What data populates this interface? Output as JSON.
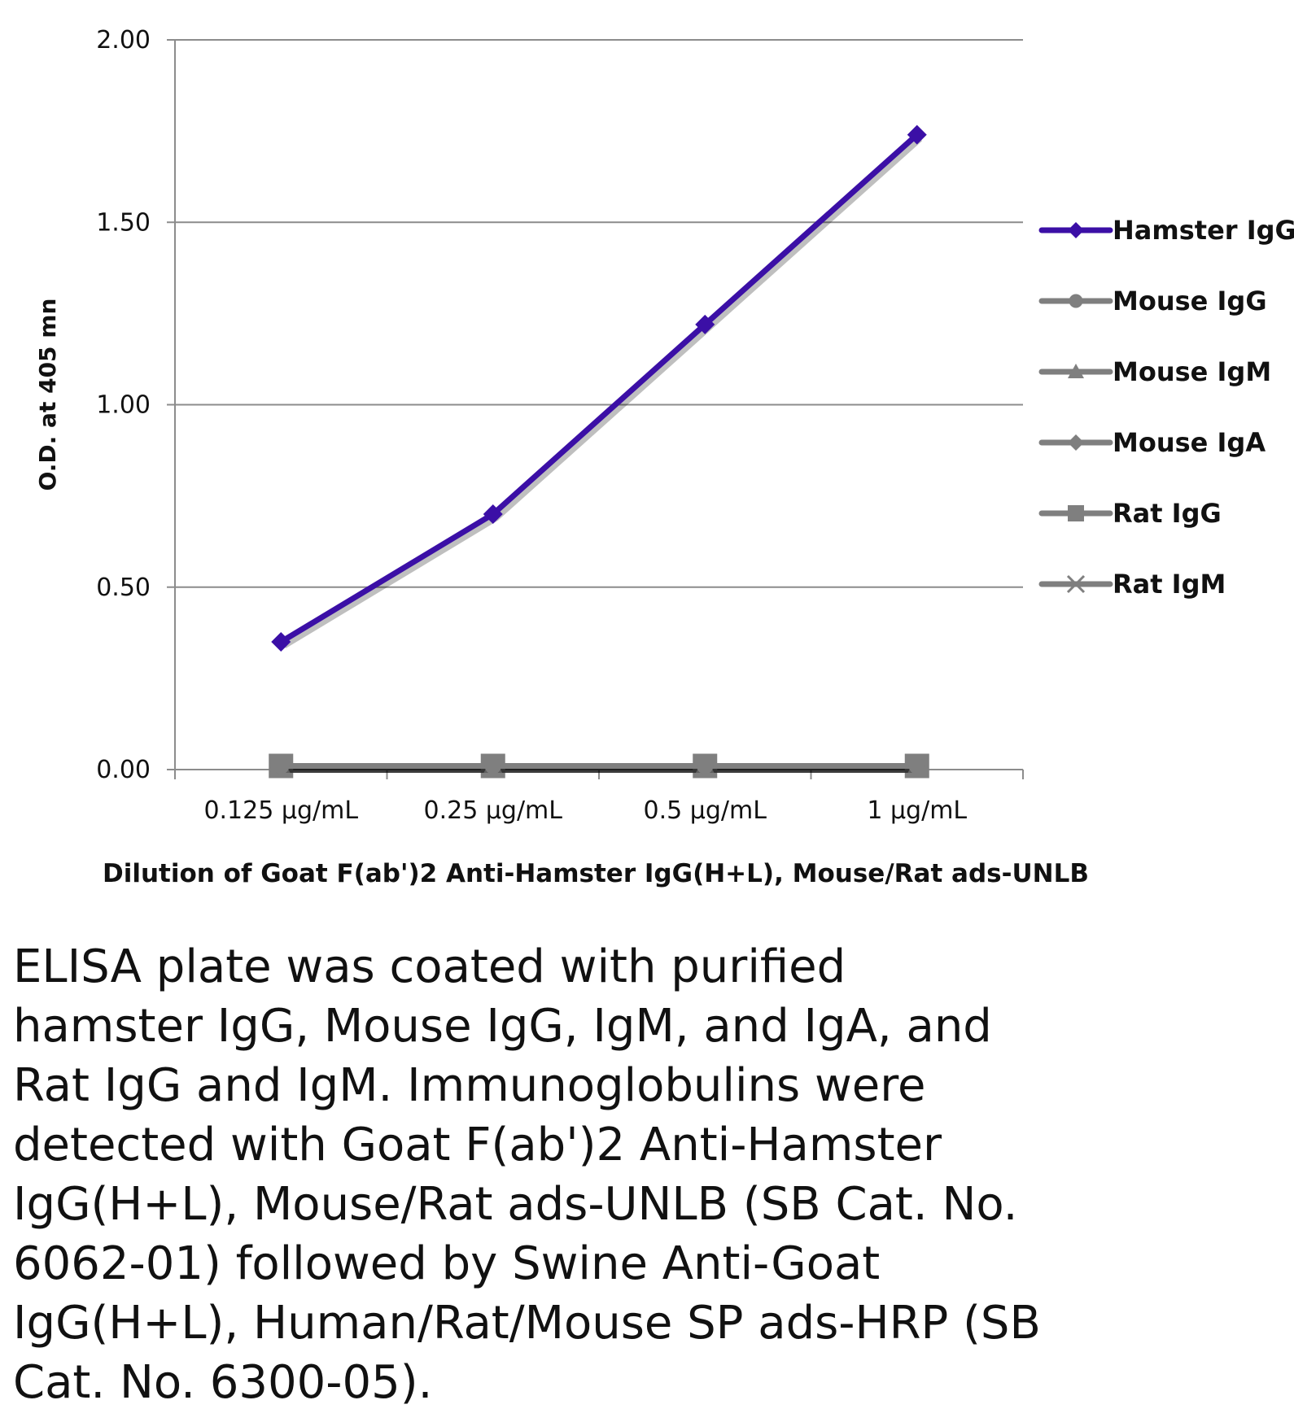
{
  "chart_data": {
    "type": "line",
    "categories": [
      "0.125 µg/mL",
      "0.25 µg/mL",
      "0.5 µg/mL",
      "1 µg/mL"
    ],
    "ylabel": "O.D. at 405 mn",
    "xlabel": "Dilution of Goat F(ab')2 Anti-Hamster IgG(H+L), Mouse/Rat ads-UNLB",
    "ylim": [
      0,
      2
    ],
    "yticks": [
      "0.00",
      "0.50",
      "1.00",
      "1.50",
      "2.00"
    ],
    "grid": true,
    "legend_position": "right",
    "series": [
      {
        "name": "Hamster IgG",
        "values": [
          0.35,
          0.7,
          1.22,
          1.74
        ],
        "color": "#3b0fa6",
        "marker": "diamond"
      },
      {
        "name": "Mouse IgG",
        "values": [
          0.01,
          0.01,
          0.01,
          0.01
        ],
        "color": "#7f7f7f",
        "marker": "circle"
      },
      {
        "name": "Mouse IgM",
        "values": [
          0.01,
          0.01,
          0.01,
          0.01
        ],
        "color": "#7f7f7f",
        "marker": "triangle"
      },
      {
        "name": "Mouse IgA",
        "values": [
          0.01,
          0.01,
          0.01,
          0.01
        ],
        "color": "#7f7f7f",
        "marker": "diamond"
      },
      {
        "name": "Rat IgG",
        "values": [
          0.01,
          0.01,
          0.01,
          0.01
        ],
        "color": "#7f7f7f",
        "marker": "square"
      },
      {
        "name": "Rat IgM",
        "values": [
          0.01,
          0.01,
          0.01,
          0.01
        ],
        "color": "#7f7f7f",
        "marker": "x"
      }
    ]
  },
  "caption": {
    "lines": [
      "ELISA plate was coated with purified",
      "hamster IgG, Mouse IgG, IgM, and IgA, and",
      "Rat IgG and IgM.  Immunoglobulins were",
      "detected with Goat F(ab')2 Anti-Hamster",
      "IgG(H+L), Mouse/Rat ads-UNLB (SB Cat. No.",
      "6062-01) followed by Swine Anti-Goat",
      "IgG(H+L), Human/Rat/Mouse SP ads-HRP (SB",
      "Cat. No. 6300-05)."
    ]
  }
}
